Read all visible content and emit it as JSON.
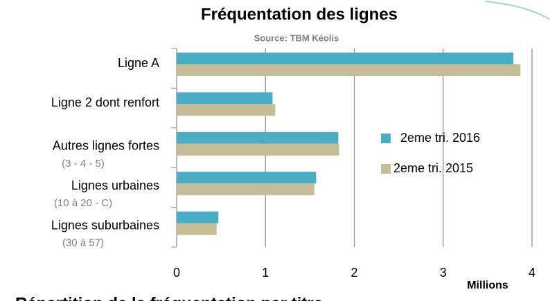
{
  "chart_data": {
    "type": "bar",
    "orientation": "horizontal",
    "title": "Fréquentation des lignes",
    "subtitle": "Source: TBM Kéolis",
    "x_label": "Millions",
    "categories": [
      "Ligne A",
      "Ligne 2 dont renfort",
      "Autres lignes fortes",
      "Lignes urbaines",
      "Lignes suburbaines"
    ],
    "category_notes": [
      null,
      null,
      "(3 - 4 - 5)",
      "(10 à 20 - C)",
      "(30 à 57)"
    ],
    "series": [
      {
        "name": "2eme tri. 2016",
        "color": "#4bacc6",
        "values": [
          3.79,
          1.08,
          1.82,
          1.57,
          0.47
        ]
      },
      {
        "name": "2eme tri. 2015",
        "color": "#c4bd97",
        "values": [
          3.87,
          1.11,
          1.83,
          1.55,
          0.45
        ]
      }
    ],
    "xlim": [
      0,
      4
    ],
    "xticks": [
      0,
      1,
      2,
      3,
      4
    ],
    "grid": true,
    "legend": "right",
    "next_heading": "Répartition de la fréquentation par titre"
  }
}
